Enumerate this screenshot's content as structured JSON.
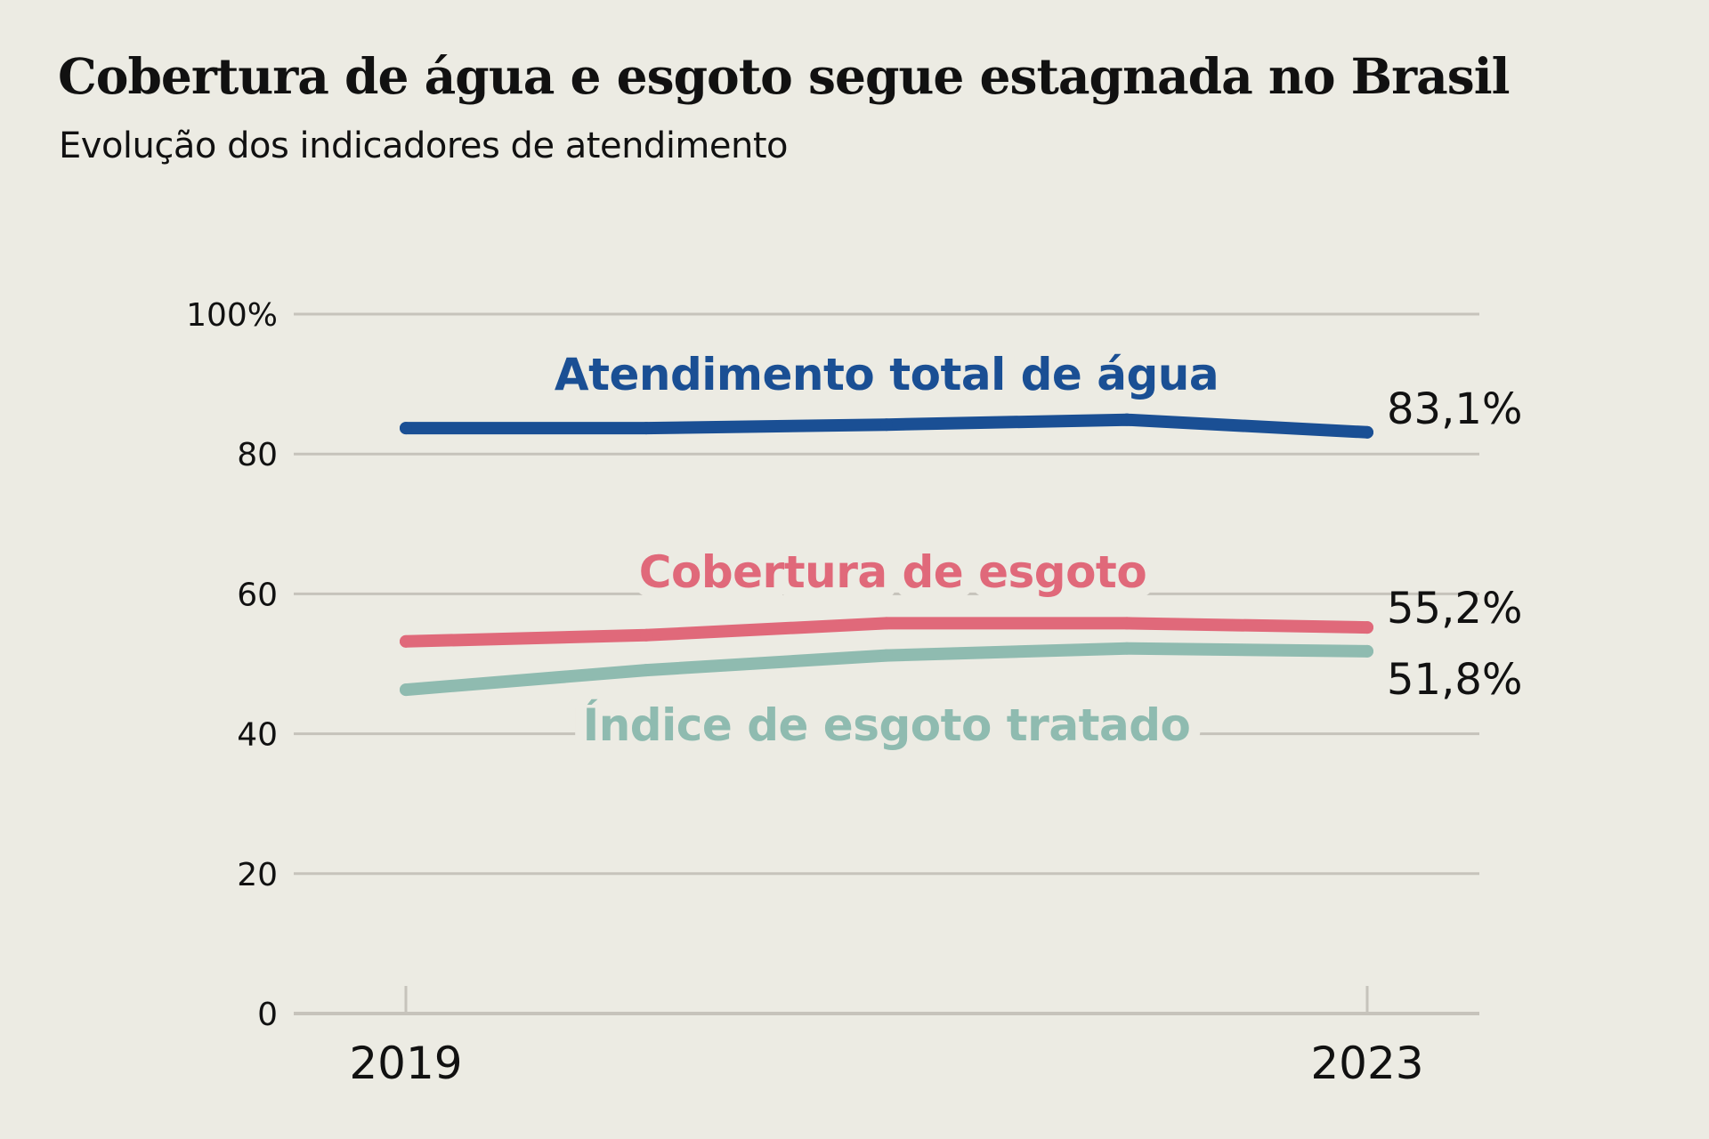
{
  "header": {
    "title": "Cobertura de água e esgoto segue estagnada no Brasil",
    "subtitle": "Evolução dos indicadores de atendimento"
  },
  "chart_data": {
    "type": "line",
    "title": "Cobertura de água e esgoto segue estagnada no Brasil",
    "subtitle": "Evolução dos indicadores de atendimento",
    "xlabel": "",
    "ylabel": "",
    "x": [
      2019,
      2020,
      2021,
      2022,
      2023
    ],
    "x_tick_labels": [
      "2019",
      "2023"
    ],
    "ylim": [
      0,
      100
    ],
    "y_ticks": [
      0,
      20,
      40,
      60,
      80,
      100
    ],
    "y_tick_labels": [
      "0",
      "20",
      "40",
      "60",
      "80",
      "100%"
    ],
    "grid": "horizontal",
    "legend": "inline labels",
    "series": [
      {
        "name": "Atendimento total de água",
        "color": "#1a4f94",
        "values": [
          83.7,
          83.7,
          84.2,
          84.9,
          83.1
        ],
        "end_label": "83,1%"
      },
      {
        "name": "Cobertura de esgoto",
        "color": "#e0697a",
        "values": [
          53.2,
          54.1,
          55.8,
          55.8,
          55.2
        ],
        "end_label": "55,2%"
      },
      {
        "name": "Índice de esgoto tratado",
        "color": "#8fbbb0",
        "values": [
          46.3,
          49.1,
          51.2,
          52.2,
          51.8
        ],
        "end_label": "51,8%"
      }
    ]
  }
}
